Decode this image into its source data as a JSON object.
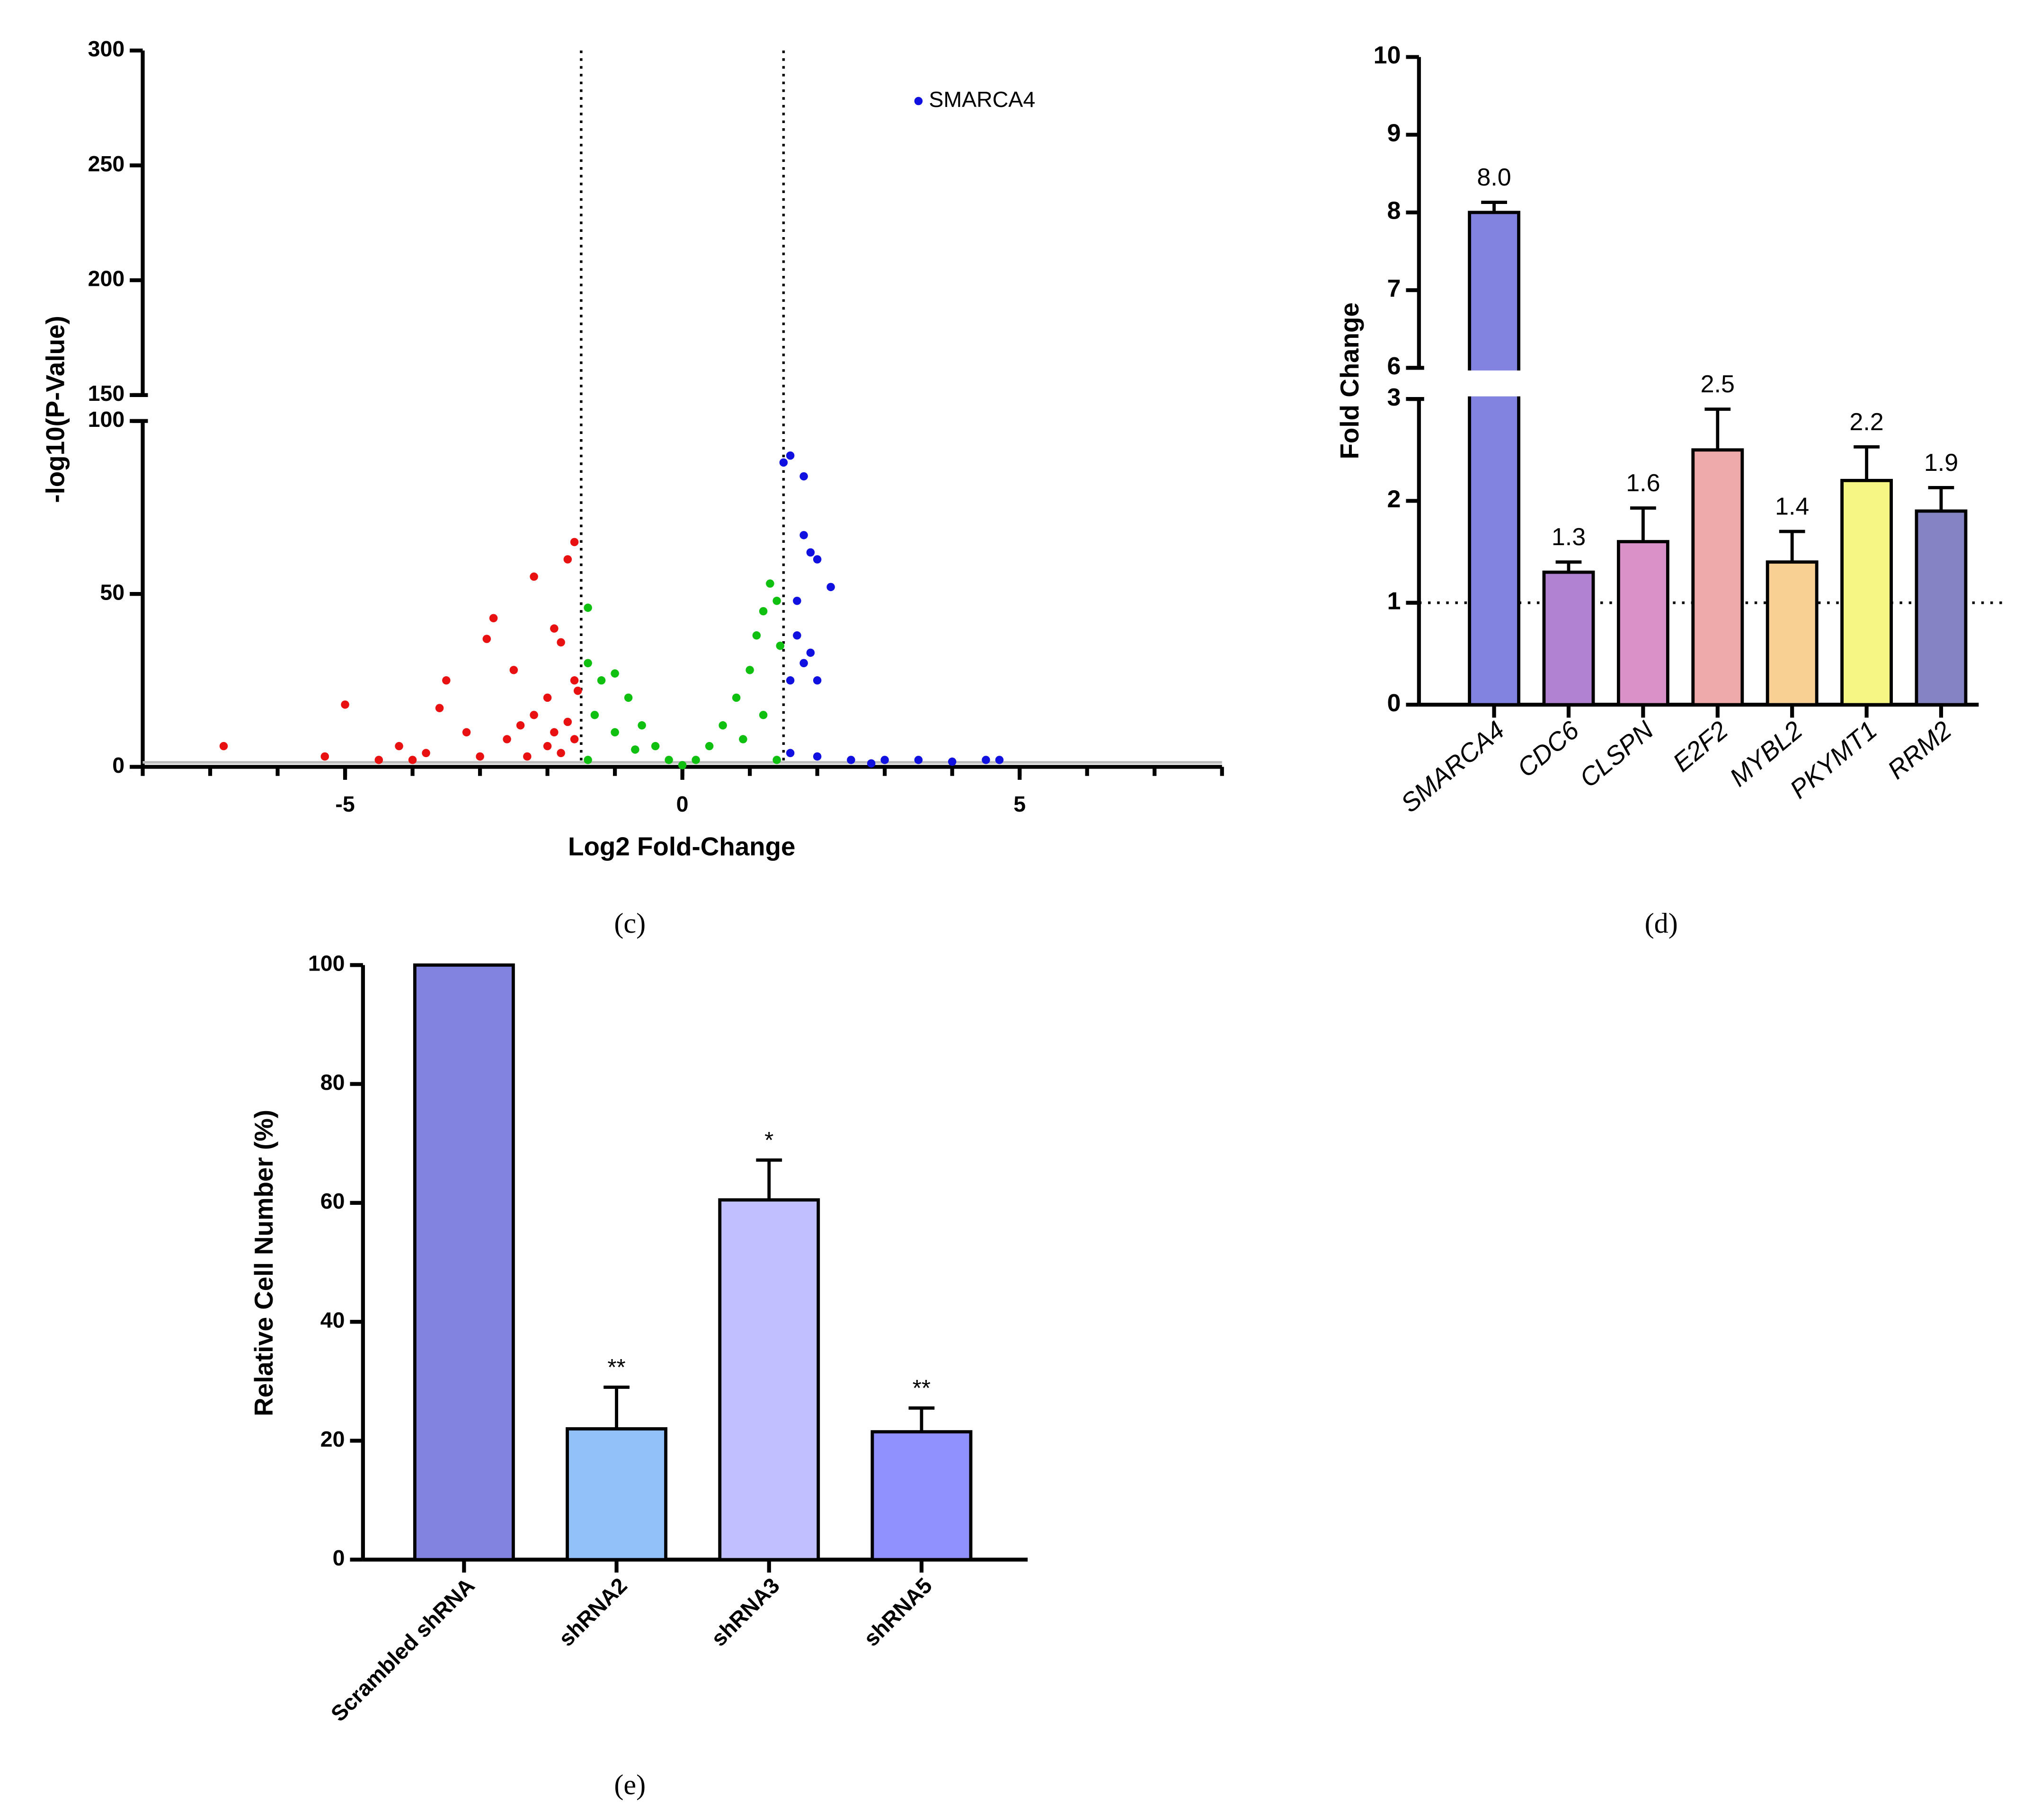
{
  "chart_data": [
    {
      "type": "scatter",
      "panel_label": "(c)",
      "xlabel": "Log2 Fold-Change",
      "ylabel": "-log10(P-Value)",
      "xlim": [
        -8,
        8
      ],
      "xticks": [
        -5,
        0,
        5
      ],
      "xminor_ticks": [
        -8,
        -7,
        -6,
        -5,
        -4,
        -3,
        -2,
        -1,
        0,
        1,
        2,
        3,
        4,
        5,
        6,
        7,
        8
      ],
      "ylim": [
        0,
        300
      ],
      "ybreak": [
        100,
        150
      ],
      "yticks": [
        0,
        50,
        100,
        150,
        200,
        250,
        300
      ],
      "vlines": [
        -1.5,
        1.5
      ],
      "hline": 1.3,
      "series": [
        {
          "color": "#e81010",
          "x": [
            -6.8,
            -5.0,
            -5.3,
            -4.5,
            -4.0,
            -3.5,
            -3.6,
            -3.0,
            -2.9,
            -2.8,
            -2.5,
            -2.4,
            -2.2,
            -2.0,
            -2.0,
            -1.9,
            -1.8,
            -1.7,
            -1.7,
            -1.6,
            -1.6,
            -1.6,
            -1.55,
            -3.2,
            -2.6,
            -2.2,
            -1.8,
            -4.2,
            -3.8,
            -2.3,
            -1.9
          ],
          "y": [
            6,
            18,
            3,
            2,
            2,
            25,
            17,
            3,
            37,
            43,
            28,
            12,
            55,
            20,
            6,
            40,
            36,
            60,
            13,
            65,
            25,
            8,
            22,
            10,
            8,
            15,
            4,
            6,
            4,
            3,
            10
          ]
        },
        {
          "color": "#10c010",
          "x": [
            -1.4,
            -1.4,
            -1.2,
            -1.0,
            -0.8,
            -0.6,
            -0.4,
            -0.2,
            0,
            0.2,
            0.4,
            0.6,
            0.8,
            1.0,
            1.1,
            1.2,
            1.3,
            1.4,
            1.45,
            -1.3,
            -1.0,
            1.2,
            0.9,
            -0.7,
            1.4,
            -1.4
          ],
          "y": [
            46,
            30,
            25,
            27,
            20,
            12,
            6,
            2,
            0.5,
            2,
            6,
            12,
            20,
            28,
            38,
            45,
            53,
            48,
            35,
            15,
            10,
            15,
            8,
            5,
            2,
            2
          ]
        },
        {
          "color": "#1010e0",
          "x": [
            1.5,
            1.6,
            1.8,
            1.8,
            1.9,
            2.0,
            2.2,
            1.7,
            1.7,
            1.8,
            1.9,
            2.0,
            1.6,
            1.6,
            2.0,
            2.5,
            3.0,
            3.5,
            4.0,
            4.5,
            4.7,
            2.8,
            3.5
          ],
          "y": [
            88,
            90,
            84,
            67,
            62,
            60,
            52,
            48,
            38,
            30,
            33,
            25,
            25,
            4,
            3,
            2,
            2,
            2,
            1.5,
            2,
            2,
            1,
            278
          ]
        }
      ],
      "annotations": [
        {
          "text": "SMARCA4",
          "x": 3.5,
          "y": 278
        }
      ]
    },
    {
      "type": "bar",
      "panel_label": "(d)",
      "ylabel": "Fold Change",
      "categories": [
        "SMARCA4",
        "CDC6",
        "CLSPN",
        "E2F2",
        "MYBL2",
        "PKYMT1",
        "RRM2"
      ],
      "values": [
        8.0,
        1.3,
        1.6,
        2.5,
        1.4,
        2.2,
        1.9
      ],
      "value_labels": [
        "8.0",
        "1.3",
        "1.6",
        "2.5",
        "1.4",
        "2.2",
        "1.9"
      ],
      "errors": [
        0.13,
        0.1,
        0.33,
        0.4,
        0.3,
        0.33,
        0.23
      ],
      "colors": [
        "#8282e0",
        "#b282d2",
        "#d892c8",
        "#eeaaaa",
        "#f8d094",
        "#f6f684",
        "#8484c4"
      ],
      "ylim": [
        0,
        10
      ],
      "ybreak": [
        3,
        6
      ],
      "yticks": [
        0,
        1,
        2,
        3,
        6,
        7,
        8,
        9,
        10
      ],
      "hline": 1
    },
    {
      "type": "bar",
      "panel_label": "(e)",
      "ylabel": "Relative Cell Number (%)",
      "categories": [
        "Scrambled shRNA",
        "shRNA2",
        "shRNA3",
        "shRNA5"
      ],
      "values": [
        100,
        22,
        60.5,
        21.5
      ],
      "errors": [
        0,
        7,
        6.7,
        4
      ],
      "colors": [
        "#8282e0",
        "#92c0f8",
        "#c0c0ff",
        "#9090ff"
      ],
      "ylim": [
        0,
        100
      ],
      "yticks": [
        0,
        20,
        40,
        60,
        80,
        100
      ],
      "annotations": [
        "",
        "**",
        "*",
        "**"
      ]
    }
  ]
}
